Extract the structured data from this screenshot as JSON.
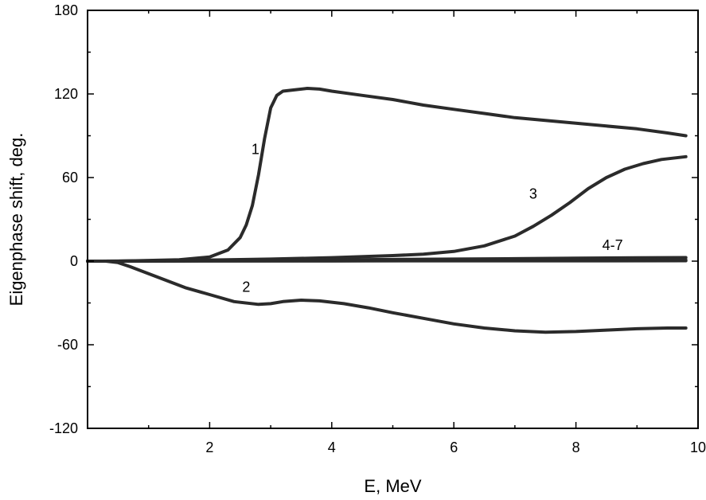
{
  "chart_data": {
    "type": "line",
    "xlabel": "E, MeV",
    "ylabel": "Eigenphase shift, deg.",
    "xlim": [
      0,
      10
    ],
    "ylim": [
      -120,
      180
    ],
    "xticks": [
      2,
      4,
      6,
      8,
      10
    ],
    "yticks": [
      -120,
      -60,
      0,
      60,
      120,
      180
    ],
    "xtick_labels": [
      "2",
      "4",
      "6",
      "8",
      "10"
    ],
    "ytick_labels": [
      "-120",
      "-60",
      "0",
      "60",
      "120",
      "180"
    ],
    "grid": false,
    "colors": {
      "line": "#2b2b2b",
      "axis": "#000000"
    },
    "series": [
      {
        "label": "1",
        "label_at": [
          2.75,
          77
        ],
        "x": [
          0.0,
          0.5,
          1.0,
          1.5,
          2.0,
          2.3,
          2.5,
          2.6,
          2.7,
          2.8,
          2.9,
          3.0,
          3.1,
          3.2,
          3.4,
          3.6,
          3.8,
          4.0,
          4.5,
          5.0,
          5.5,
          6.0,
          6.5,
          7.0,
          7.5,
          8.0,
          8.5,
          9.0,
          9.5,
          9.8
        ],
        "y": [
          0,
          0,
          0.5,
          1,
          3,
          8,
          17,
          26,
          40,
          62,
          88,
          110,
          119,
          122,
          123,
          124,
          123.5,
          122,
          119,
          116,
          112,
          109,
          106,
          103,
          101,
          99,
          97,
          95,
          92,
          90
        ]
      },
      {
        "label": "2",
        "label_at": [
          2.6,
          -22
        ],
        "x": [
          0.0,
          0.3,
          0.5,
          0.7,
          1.0,
          1.3,
          1.6,
          2.0,
          2.4,
          2.8,
          3.0,
          3.2,
          3.5,
          3.8,
          4.2,
          4.6,
          5.0,
          5.5,
          6.0,
          6.5,
          7.0,
          7.5,
          8.0,
          8.5,
          9.0,
          9.5,
          9.8
        ],
        "y": [
          0,
          0,
          -1,
          -4,
          -9,
          -14,
          -19,
          -24,
          -29,
          -31,
          -30.5,
          -29,
          -28,
          -28.5,
          -30.5,
          -33.5,
          -37,
          -41,
          -45,
          -48,
          -50,
          -51,
          -50.5,
          -49.5,
          -48.5,
          -48,
          -48
        ]
      },
      {
        "label": "3",
        "label_at": [
          7.3,
          45
        ],
        "x": [
          0.0,
          0.5,
          1.0,
          2.0,
          3.0,
          4.0,
          5.0,
          5.5,
          6.0,
          6.5,
          7.0,
          7.3,
          7.6,
          7.9,
          8.2,
          8.5,
          8.8,
          9.1,
          9.4,
          9.8
        ],
        "y": [
          0,
          0,
          0.2,
          0.8,
          1.5,
          2.5,
          4,
          5,
          7,
          11,
          18,
          25,
          33,
          42,
          52,
          60,
          66,
          70,
          73,
          75
        ]
      },
      {
        "label": "4-7",
        "label_at": [
          8.6,
          8
        ],
        "x": [
          0.0,
          1.0,
          2.0,
          3.0,
          4.0,
          5.0,
          6.0,
          7.0,
          8.0,
          9.0,
          9.8
        ],
        "y": [
          0,
          0.1,
          0.3,
          0.6,
          0.9,
          1.2,
          1.5,
          1.8,
          2.1,
          2.4,
          2.6
        ]
      },
      {
        "label": "",
        "x": [
          0.0,
          2.0,
          4.0,
          6.0,
          8.0,
          9.8
        ],
        "y": [
          0,
          0.1,
          0.2,
          0.4,
          0.6,
          0.8
        ]
      },
      {
        "label": "",
        "x": [
          0.0,
          2.0,
          4.0,
          6.0,
          8.0,
          9.8
        ],
        "y": [
          0,
          0.1,
          0.1,
          0.2,
          0.2,
          0.3
        ]
      }
    ]
  }
}
